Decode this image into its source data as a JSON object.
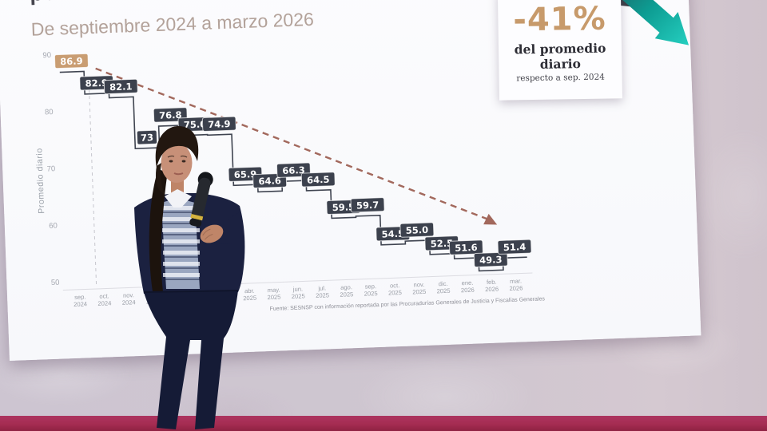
{
  "slide": {
    "title": "por mes a nivel nacional",
    "subtitle": "De septiembre 2024 a marzo 2026",
    "callout": {
      "value": "-41%",
      "caption": "del promedio diario",
      "subcaption": "respecto a sep. 2024"
    },
    "source": "Fuente: SESNSP con información reportada por las Procuradurías Generales de Justicia y Fiscalías Generales"
  },
  "chart_data": {
    "type": "line",
    "subtype": "step",
    "title": "por mes a nivel nacional",
    "subtitle": "De septiembre 2024 a marzo 2026",
    "xlabel": "",
    "ylabel": "Promedio diario",
    "ylim": [
      48,
      92
    ],
    "yticks": [
      "90",
      "80",
      "70",
      "60",
      "50"
    ],
    "grid": "off",
    "legend_position": "none",
    "categories": [
      "sep. 2024",
      "oct. 2024",
      "nov. 2024",
      "dic. 2024",
      "ene. 2025",
      "feb. 2025",
      "mar. 2025",
      "abr. 2025",
      "may. 2025",
      "jun. 2025",
      "jul. 2025",
      "ago. 2025",
      "sep. 2025",
      "oct. 2025",
      "nov. 2025",
      "dic. 2025",
      "ene. 2026",
      "feb. 2026",
      "mar. 2026"
    ],
    "series": [
      {
        "name": "Promedio diario",
        "values": [
          86.9,
          82.9,
          82.1,
          73,
          76.8,
          75.0,
          74.9,
          65.9,
          64.6,
          66.3,
          64.5,
          59.5,
          59.7,
          54.5,
          55.0,
          52.5,
          51.6,
          49.3,
          51.4
        ]
      }
    ],
    "point_labels": [
      "86.9",
      "82.9",
      "82.1",
      "73",
      "76.8",
      "75.0",
      "74.9",
      "65.9",
      "64.6",
      "66.3",
      "64.5",
      "59.5",
      "59.7",
      "54.5",
      "55.0",
      "52.5",
      "51.6",
      "49.3",
      "51.4"
    ],
    "highlight_index": 0,
    "annotations": [
      {
        "type": "trend-arrow",
        "style": "dashed",
        "direction": "down-right"
      },
      {
        "type": "callout",
        "value": "-41%",
        "text": "del promedio diario",
        "subtext": "respecto a sep. 2024"
      }
    ]
  },
  "colors": {
    "accent_tan": "#c99d72",
    "label_box": "#3c414d",
    "step_line": "#3f4450",
    "trend_arrow": "#a2685c",
    "teal_arrow_start": "#234c52",
    "teal_arrow_end": "#25cfc0",
    "charcoal_shape": "#3b3f47",
    "floor_stripe": "#a52c52",
    "title_text": "#46464f",
    "subtitle_text": "#b3a29a"
  }
}
